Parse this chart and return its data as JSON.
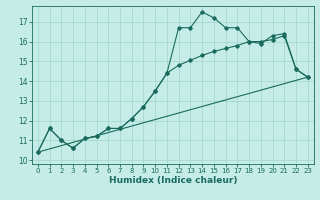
{
  "xlabel": "Humidex (Indice chaleur)",
  "bg_color": "#c5ece6",
  "grid_color": "#a8d8d0",
  "line_color": "#1a6b5e",
  "xlim": [
    -0.5,
    23.5
  ],
  "ylim": [
    9.8,
    17.8
  ],
  "xticks": [
    0,
    1,
    2,
    3,
    4,
    5,
    6,
    7,
    8,
    9,
    10,
    11,
    12,
    13,
    14,
    15,
    16,
    17,
    18,
    19,
    20,
    21,
    22,
    23
  ],
  "yticks": [
    10,
    11,
    12,
    13,
    14,
    15,
    16,
    17
  ],
  "curve1_x": [
    0,
    1,
    2,
    3,
    4,
    5,
    6,
    7,
    8,
    9,
    10,
    11,
    12,
    13,
    14,
    15,
    16,
    17,
    18,
    19,
    20,
    21,
    22,
    23
  ],
  "curve1_y": [
    10.4,
    11.6,
    11.0,
    10.6,
    11.1,
    11.2,
    11.6,
    11.6,
    12.1,
    12.7,
    13.5,
    14.4,
    16.7,
    16.7,
    17.5,
    17.2,
    16.7,
    16.7,
    16.0,
    15.9,
    16.3,
    16.4,
    14.6,
    14.2
  ],
  "curve2_x": [
    0,
    1,
    2,
    3,
    4,
    5,
    6,
    7,
    8,
    9,
    10,
    11,
    12,
    13,
    14,
    15,
    16,
    17,
    18,
    19,
    20,
    21,
    22,
    23
  ],
  "curve2_y": [
    10.4,
    11.6,
    11.0,
    10.6,
    11.1,
    11.2,
    11.6,
    11.6,
    12.1,
    12.7,
    13.5,
    14.4,
    14.8,
    15.05,
    15.3,
    15.5,
    15.65,
    15.8,
    16.0,
    16.0,
    16.1,
    16.3,
    14.6,
    14.2
  ],
  "curve3_x": [
    0,
    23
  ],
  "curve3_y": [
    10.4,
    14.2
  ]
}
